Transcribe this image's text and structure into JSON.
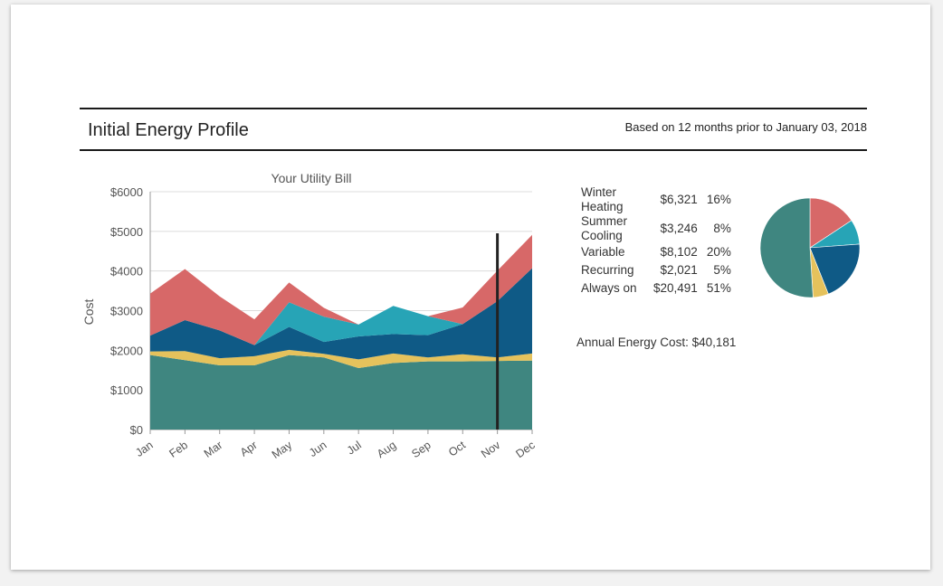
{
  "header": {
    "title": "Initial Energy Profile",
    "subtitle": "Based on 12 months prior to January 03, 2018"
  },
  "breakdown": {
    "rows": [
      {
        "category": "Winter Heating",
        "cost": "$6,321",
        "percent": "16%"
      },
      {
        "category": "Summer Cooling",
        "cost": "$3,246",
        "percent": "8%"
      },
      {
        "category": "Variable",
        "cost": "$8,102",
        "percent": "20%"
      },
      {
        "category": "Recurring",
        "cost": "$2,021",
        "percent": "5%"
      },
      {
        "category": "Always on",
        "cost": "$20,491",
        "percent": "51%"
      }
    ],
    "annual_cost": "Annual Energy Cost: $40,181"
  },
  "chart_data": [
    {
      "type": "area",
      "stacked": true,
      "title": "Your Utility Bill",
      "xlabel": "",
      "ylabel": "Cost",
      "categories": [
        "Jan",
        "Feb",
        "Mar",
        "Apr",
        "May",
        "Jun",
        "Jul",
        "Aug",
        "Sep",
        "Oct",
        "Nov",
        "Dec"
      ],
      "ylim": [
        0,
        6000
      ],
      "yticks": [
        0,
        1000,
        2000,
        3000,
        4000,
        5000,
        6000
      ],
      "ytick_labels": [
        "$0",
        "$1000",
        "$2000",
        "$3000",
        "$4000",
        "$5000",
        "$6000"
      ],
      "grid": true,
      "marker": {
        "category": "Nov"
      },
      "series": [
        {
          "key": "always_on",
          "color": "#3f8680",
          "values": [
            1880,
            1750,
            1620,
            1620,
            1880,
            1820,
            1550,
            1680,
            1720,
            1720,
            1730,
            1740
          ]
        },
        {
          "key": "recurring",
          "color": "#e5c25c",
          "values": [
            90,
            230,
            180,
            230,
            130,
            90,
            220,
            240,
            100,
            180,
            90,
            180
          ]
        },
        {
          "key": "variable",
          "color": "#0f5a86",
          "values": [
            400,
            780,
            700,
            280,
            580,
            300,
            580,
            490,
            560,
            760,
            1420,
            2150
          ]
        },
        {
          "key": "summer_cooling",
          "color": "#27a4b6",
          "values": [
            0,
            0,
            0,
            0,
            620,
            640,
            300,
            710,
            480,
            0,
            0,
            0
          ]
        },
        {
          "key": "winter_heating",
          "color": "#d76868",
          "values": [
            1060,
            1290,
            860,
            650,
            500,
            220,
            0,
            0,
            0,
            420,
            770,
            840
          ]
        }
      ]
    },
    {
      "type": "pie",
      "categories": [
        "Winter Heating",
        "Summer Cooling",
        "Variable",
        "Recurring",
        "Always on"
      ],
      "values": [
        6321,
        3246,
        8102,
        2021,
        20491
      ],
      "colors": [
        "#d76868",
        "#27a4b6",
        "#0f5a86",
        "#e5c25c",
        "#3f8680"
      ]
    }
  ]
}
